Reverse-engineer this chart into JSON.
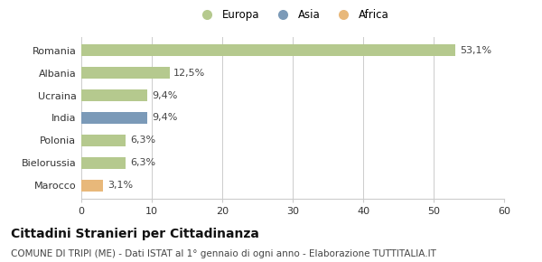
{
  "categories": [
    "Romania",
    "Albania",
    "Ucraina",
    "India",
    "Polonia",
    "Bielorussia",
    "Marocco"
  ],
  "values": [
    53.1,
    12.5,
    9.4,
    9.4,
    6.3,
    6.3,
    3.1
  ],
  "labels": [
    "53,1%",
    "12,5%",
    "9,4%",
    "9,4%",
    "6,3%",
    "6,3%",
    "3,1%"
  ],
  "colors": [
    "#b5c98e",
    "#b5c98e",
    "#b5c98e",
    "#7b9ab8",
    "#b5c98e",
    "#b5c98e",
    "#e8b87a"
  ],
  "legend": [
    {
      "label": "Europa",
      "color": "#b5c98e"
    },
    {
      "label": "Asia",
      "color": "#7b9ab8"
    },
    {
      "label": "Africa",
      "color": "#e8b87a"
    }
  ],
  "xlim": [
    0,
    60
  ],
  "xticks": [
    0,
    10,
    20,
    30,
    40,
    50,
    60
  ],
  "title": "Cittadini Stranieri per Cittadinanza",
  "subtitle": "COMUNE DI TRIPI (ME) - Dati ISTAT al 1° gennaio di ogni anno - Elaborazione TUTTITALIA.IT",
  "background_color": "#ffffff",
  "grid_color": "#cccccc",
  "bar_height": 0.55,
  "title_fontsize": 10,
  "subtitle_fontsize": 7.5,
  "label_fontsize": 8,
  "tick_fontsize": 8,
  "legend_fontsize": 8.5
}
